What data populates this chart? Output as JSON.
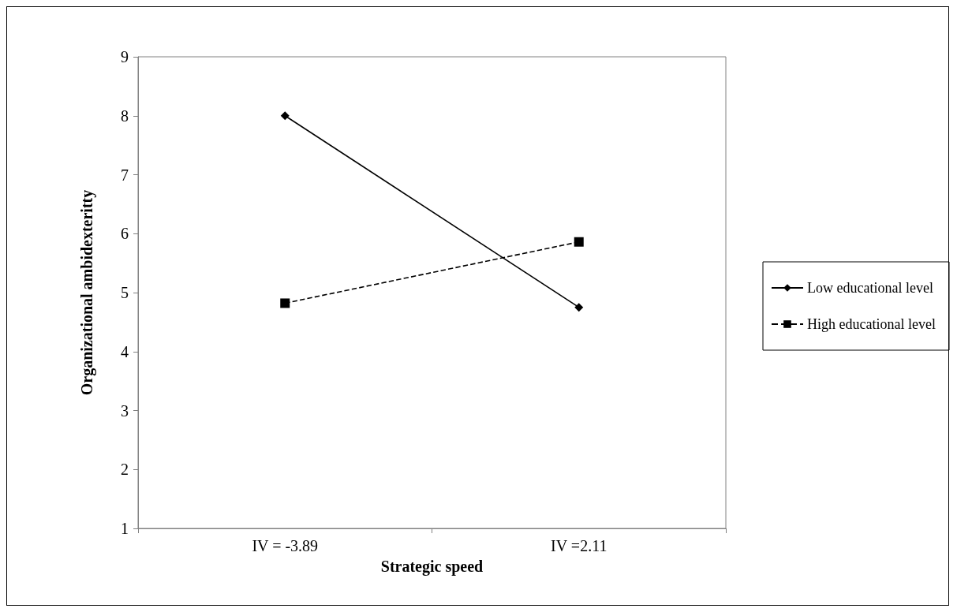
{
  "chart_data": {
    "type": "line",
    "xlabel": "Strategic speed",
    "ylabel": "Organizational ambidexteritty",
    "categories": [
      "IV = -3.89",
      "IV =2.11"
    ],
    "series": [
      {
        "name": "Low educational level",
        "color": "#000000",
        "values": [
          8.0,
          4.75
        ],
        "marker": "diamond",
        "line_style": "solid"
      },
      {
        "name": "High educational level",
        "color": "#000000",
        "values": [
          4.82,
          5.86
        ],
        "marker": "square",
        "line_style": "dashed"
      }
    ],
    "ylim": [
      1,
      9
    ],
    "yticks": [
      1,
      2,
      3,
      4,
      5,
      6,
      7,
      8,
      9
    ],
    "grid": false,
    "legend": "right"
  }
}
